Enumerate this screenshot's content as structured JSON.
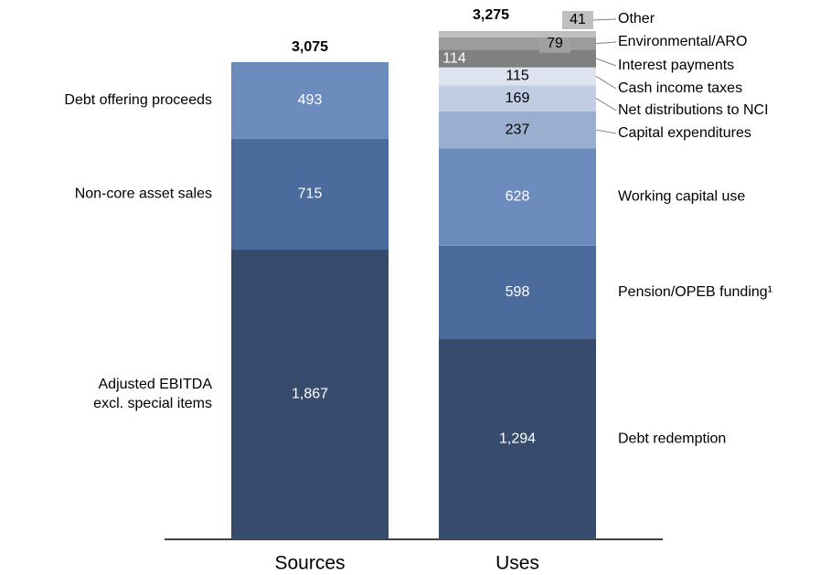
{
  "chart_data": {
    "type": "stacked-bar",
    "categories": [
      "Sources",
      "Uses"
    ],
    "totals": [
      3075,
      3275
    ],
    "total_labels": [
      "3,075",
      "3,275"
    ],
    "stacks": [
      {
        "segments": [
          {
            "name": [
              "Adjusted EBITDA",
              "excl. special items"
            ],
            "value": 1867,
            "value_label": "1,867",
            "color": "#374c6d"
          },
          {
            "name": [
              "Non-core asset sales"
            ],
            "value": 715,
            "color": "#4a6b9c"
          },
          {
            "name": [
              "Debt offering proceeds"
            ],
            "value": 493,
            "color": "#6b8cbd"
          }
        ]
      },
      {
        "segments": [
          {
            "name": [
              "Debt redemption"
            ],
            "value": 1294,
            "value_label": "1,294",
            "color": "#374c6d"
          },
          {
            "name": [
              "Pension/OPEB funding¹"
            ],
            "value": 598,
            "color": "#4a6b9c"
          },
          {
            "name": [
              "Working capital use"
            ],
            "value": 628,
            "color": "#6b8cbd"
          },
          {
            "name": [
              "Capital expenditures"
            ],
            "value": 237,
            "color": "#9aafd0"
          },
          {
            "name": [
              "Net distributions to NCI"
            ],
            "value": 169,
            "color": "#c1cde3"
          },
          {
            "name": [
              "Cash income taxes"
            ],
            "value": 115,
            "color": "#dde4f0"
          },
          {
            "name": [
              "Interest payments"
            ],
            "value": 114,
            "color": "#808080"
          },
          {
            "name": [
              "Environmental/ARO"
            ],
            "value": 79,
            "color": "#9c9c9c"
          },
          {
            "name": [
              "Other"
            ],
            "value": 41,
            "color": "#bfbfbf"
          }
        ]
      }
    ]
  }
}
